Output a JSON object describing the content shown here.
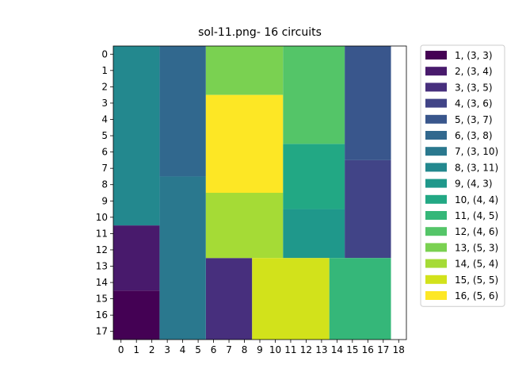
{
  "chart_data": {
    "type": "heatmap",
    "title": "sol-11.png- 16 circuits",
    "xlabel": "",
    "ylabel": "",
    "xlim": [
      -0.5,
      18.5
    ],
    "ylim": [
      17.5,
      -0.5
    ],
    "x_ticks": [
      "0",
      "1",
      "2",
      "3",
      "4",
      "5",
      "6",
      "7",
      "8",
      "9",
      "10",
      "11",
      "12",
      "13",
      "14",
      "15",
      "16",
      "17",
      "18"
    ],
    "y_ticks": [
      "0",
      "1",
      "2",
      "3",
      "4",
      "5",
      "6",
      "7",
      "8",
      "9",
      "10",
      "11",
      "12",
      "13",
      "14",
      "15",
      "16",
      "17"
    ],
    "grid": false,
    "legend_position": "outside-right",
    "circuits": [
      {
        "label": "1, (3, 3)",
        "color": "#440154",
        "x": 0,
        "y": 15,
        "w": 3,
        "h": 3
      },
      {
        "label": "2, (3, 4)",
        "color": "#481a6c",
        "x": 0,
        "y": 11,
        "w": 3,
        "h": 4
      },
      {
        "label": "3, (3, 5)",
        "color": "#472f7d",
        "x": 6,
        "y": 13,
        "w": 3,
        "h": 5
      },
      {
        "label": "4, (3, 6)",
        "color": "#414487",
        "x": 15,
        "y": 7,
        "w": 3,
        "h": 6
      },
      {
        "label": "5, (3, 7)",
        "color": "#39568c",
        "x": 15,
        "y": 0,
        "w": 3,
        "h": 7
      },
      {
        "label": "6, (3, 8)",
        "color": "#31688e",
        "x": 3,
        "y": 0,
        "w": 3,
        "h": 8
      },
      {
        "label": "7, (3, 10)",
        "color": "#2a788e",
        "x": 3,
        "y": 8,
        "w": 3,
        "h": 10
      },
      {
        "label": "8, (3, 11)",
        "color": "#23888e",
        "x": 0,
        "y": 0,
        "w": 3,
        "h": 11
      },
      {
        "label": "9, (4, 3)",
        "color": "#1f988b",
        "x": 11,
        "y": 10,
        "w": 4,
        "h": 3
      },
      {
        "label": "10, (4, 4)",
        "color": "#22a884",
        "x": 11,
        "y": 6,
        "w": 4,
        "h": 4
      },
      {
        "label": "11, (4, 5)",
        "color": "#35b779",
        "x": 14,
        "y": 13,
        "w": 4,
        "h": 5
      },
      {
        "label": "12, (4, 6)",
        "color": "#54c568",
        "x": 11,
        "y": 0,
        "w": 4,
        "h": 6
      },
      {
        "label": "13, (5, 3)",
        "color": "#7ad151",
        "x": 6,
        "y": 0,
        "w": 5,
        "h": 3
      },
      {
        "label": "14, (5, 4)",
        "color": "#a5db36",
        "x": 6,
        "y": 9,
        "w": 5,
        "h": 4
      },
      {
        "label": "15, (5, 5)",
        "color": "#d2e21b",
        "x": 9,
        "y": 13,
        "w": 5,
        "h": 5
      },
      {
        "label": "16, (5, 6)",
        "color": "#fde725",
        "x": 6,
        "y": 3,
        "w": 5,
        "h": 6
      }
    ]
  }
}
